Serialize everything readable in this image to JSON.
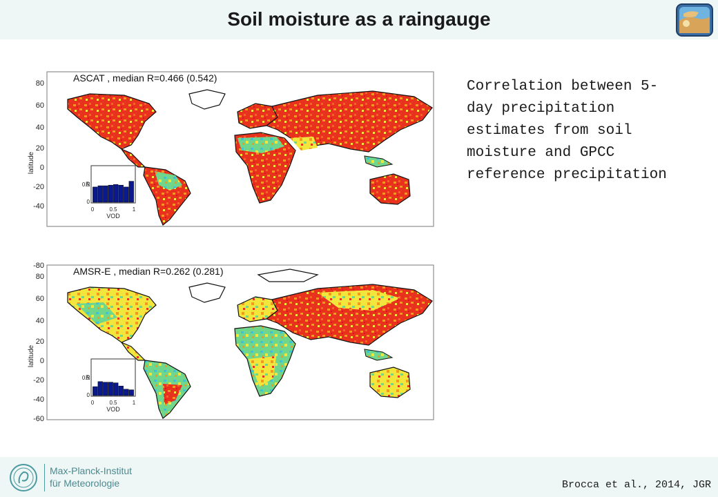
{
  "slide": {
    "title": "Soil moisture as a raingauge",
    "caption": "Correlation between 5-day precipitation estimates from soil moisture and GPCC reference precipitation",
    "citation": "Brocca et al., 2014, JGR"
  },
  "institute": {
    "line1": "Max-Planck-Institut",
    "line2": "für Meteorologie"
  },
  "maps": [
    {
      "label": "ASCAT , median R=0.466 (0.542)",
      "ylabel": "latitude",
      "yticks": [
        "80",
        "60",
        "40",
        "20",
        "0",
        "-20",
        "-40"
      ],
      "inset": {
        "ylabel": "R",
        "xlabel": "VOD",
        "ytick": "0.5",
        "yzero": "0",
        "xticks": [
          "0",
          "0.5",
          "1"
        ],
        "values": [
          0.48,
          0.52,
          0.52,
          0.54,
          0.56,
          0.54,
          0.48,
          0.66
        ]
      }
    },
    {
      "label": "AMSR-E , median R=0.262 (0.281)",
      "ylabel": "latitude",
      "yticks": [
        "-80",
        "80",
        "60",
        "40",
        "20",
        "0",
        "-20",
        "-40",
        "-60"
      ],
      "inset": {
        "ylabel": "R",
        "xlabel": "VOD",
        "ytick": "0.5",
        "yzero": "0",
        "xticks": [
          "0",
          "0.5",
          "1"
        ],
        "values": [
          0.28,
          0.44,
          0.42,
          0.42,
          0.4,
          0.3,
          0.2,
          0.18
        ]
      }
    }
  ],
  "colors": {
    "header_bg": "#eef6f6",
    "ocean": "#ffffff",
    "land_hot": "#e8321e",
    "land_warm": "#f39a1e",
    "land_mid": "#f2e63c",
    "land_cool": "#6fd68c",
    "land_cold": "#3fc2d8",
    "bar": "#0a1a8c"
  }
}
